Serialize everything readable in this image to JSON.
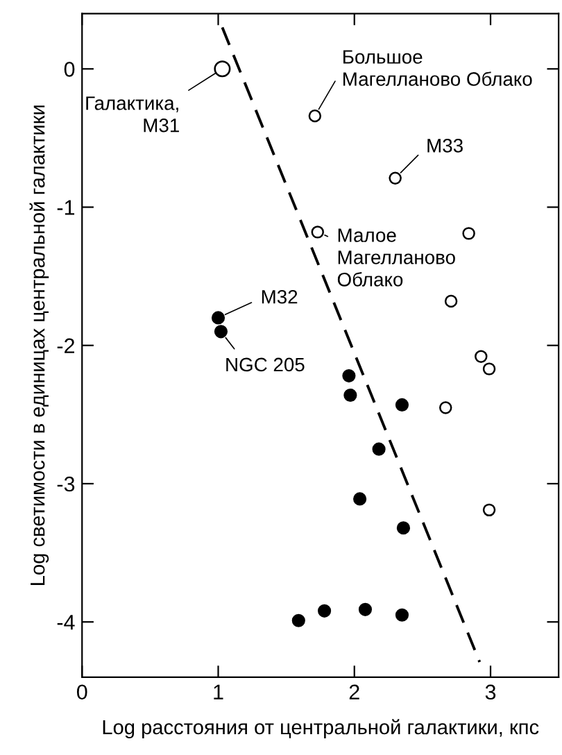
{
  "chart_data": {
    "type": "scatter",
    "xlabel": "Log расстояния от центральной галактики, кпс",
    "ylabel": "Log светимости в единицах центральной галактики",
    "xlim": [
      0,
      3.5
    ],
    "ylim": [
      -4.4,
      0.4
    ],
    "xticks": [
      0,
      1,
      2,
      3
    ],
    "yticks": [
      0,
      -1,
      -2,
      -3,
      -4
    ],
    "grid": false,
    "legend": false,
    "series": [
      {
        "type": "line",
        "marker": "none",
        "line_style": "dashed",
        "color": "#000000",
        "x": [
          1.03,
          2.92
        ],
        "values": [
          0.3,
          -4.29
        ]
      },
      {
        "marker": "circle",
        "color": "#ffffff",
        "x": [
          1.03,
          1.71,
          2.3,
          1.73,
          2.84,
          2.71,
          2.93,
          2.99,
          2.67,
          2.99
        ],
        "values": [
          0.0,
          -0.34,
          -0.79,
          -1.18,
          -1.19,
          -1.68,
          -2.08,
          -2.17,
          -2.45,
          -3.19
        ],
        "sizes": [
          1,
          0.55,
          0.55,
          0.55,
          0.55,
          0.55,
          0.55,
          0.55,
          0.55,
          0.55
        ]
      },
      {
        "marker": "circle",
        "color": "#000000",
        "x": [
          1.0,
          1.02,
          1.96,
          1.97,
          2.35,
          2.18,
          2.04,
          2.36,
          1.59,
          1.78,
          2.08,
          2.35
        ],
        "values": [
          -1.8,
          -1.9,
          -2.22,
          -2.36,
          -2.43,
          -2.75,
          -3.11,
          -3.32,
          -3.99,
          -3.92,
          -3.91,
          -3.95
        ]
      }
    ],
    "annotations": [
      {
        "text": "Галактика,\nM31",
        "x": 1.03,
        "y": 0.0
      },
      {
        "text": "Большое\nМагелланово Облако",
        "x": 1.71,
        "y": -0.34
      },
      {
        "text": "M33",
        "x": 2.3,
        "y": -0.79
      },
      {
        "text": "Малое\nМагелланово\nОблако",
        "x": 1.73,
        "y": -1.18
      },
      {
        "text": "M32",
        "x": 1.0,
        "y": -1.8
      },
      {
        "text": "NGC 205",
        "x": 1.02,
        "y": -1.9
      }
    ]
  }
}
